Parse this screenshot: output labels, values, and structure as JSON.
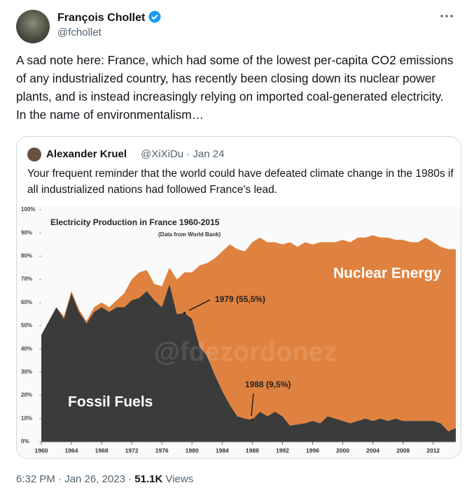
{
  "tweet": {
    "author": "François Chollet",
    "handle": "@fchollet",
    "text": "A sad note here: France, which had some of the lowest per-capita CO2 emissions of any industrialized country, has recently been closing down its nuclear power plants, and is instead increasingly relying on imported coal-generated electricity. In the name of environmentalism…"
  },
  "quoted": {
    "author": "Alexander Kruel",
    "meta": "@XiXiDu · Jan 24",
    "text": "Your frequent reminder that the world could have defeated climate change in the 1980s if all industrialized nations had followed France's lead."
  },
  "footer": {
    "timestamp": "6:32 PM · Jan 26, 2023 ·",
    "views": "51.1K",
    "views_label": "Views"
  },
  "chart_data": {
    "type": "area",
    "stacked": true,
    "title": "Electricity Production in France 1960-2015",
    "subtitle": "(Data from World Bank)",
    "watermark": "@fdezordonez",
    "annotations": [
      {
        "text": "1979 (55,5%)",
        "x": 1979,
        "y": 55.5
      },
      {
        "text": "1988 (9,5%)",
        "x": 1988,
        "y": 9.5
      }
    ],
    "x": [
      1960,
      1961,
      1962,
      1963,
      1964,
      1965,
      1966,
      1967,
      1968,
      1969,
      1970,
      1971,
      1972,
      1973,
      1974,
      1975,
      1976,
      1977,
      1978,
      1979,
      1980,
      1981,
      1982,
      1983,
      1984,
      1985,
      1986,
      1987,
      1988,
      1989,
      1990,
      1991,
      1992,
      1993,
      1994,
      1995,
      1996,
      1997,
      1998,
      1999,
      2000,
      2001,
      2002,
      2003,
      2004,
      2005,
      2006,
      2007,
      2008,
      2009,
      2010,
      2011,
      2012,
      2013,
      2014,
      2015
    ],
    "series": [
      {
        "name": "Fossil Fuels",
        "color": "#3b3b3b",
        "values": [
          46,
          52,
          58,
          53,
          64,
          56,
          51,
          56,
          58,
          56,
          58,
          58,
          61,
          62,
          65,
          61,
          58,
          68,
          55,
          55.5,
          53,
          41,
          37,
          29,
          22,
          16,
          11,
          10,
          9.5,
          13,
          11,
          13,
          11,
          7,
          7.5,
          8,
          9,
          8,
          11,
          10,
          9,
          8,
          9,
          10,
          9,
          10,
          9,
          10,
          9,
          9,
          9,
          9,
          9,
          8,
          4.5,
          6
        ]
      },
      {
        "name": "Nuclear Energy",
        "color": "#e0823f",
        "values": [
          0,
          0,
          0,
          1,
          1,
          1,
          1,
          2,
          2,
          2,
          3,
          6,
          9,
          11,
          9,
          7,
          9,
          7,
          15,
          17.5,
          20,
          35,
          40,
          50,
          60,
          69,
          72,
          72,
          76.5,
          75,
          75,
          73,
          74,
          79,
          76.5,
          78,
          76,
          78,
          75,
          76,
          78,
          78,
          79,
          78,
          80,
          78,
          79,
          77,
          78,
          77,
          77,
          79,
          77,
          76,
          78.5,
          77
        ]
      }
    ],
    "xlim": [
      1960,
      2015
    ],
    "ylim": [
      0,
      100
    ],
    "xticks": [
      1960,
      1964,
      1968,
      1972,
      1976,
      1980,
      1984,
      1988,
      1992,
      1996,
      2000,
      2004,
      2008,
      2012
    ],
    "yticks": [
      {
        "value": 0,
        "label": "0%"
      },
      {
        "value": 10,
        "label": "10%"
      },
      {
        "value": 20,
        "label": "20%"
      },
      {
        "value": 30,
        "label": "30%"
      },
      {
        "value": 40,
        "label": "40%"
      },
      {
        "value": 50,
        "label": "50%"
      },
      {
        "value": 60,
        "label": "60%"
      },
      {
        "value": 70,
        "label": "70%"
      },
      {
        "value": 80,
        "label": "80%"
      },
      {
        "value": 90,
        "label": "90%"
      },
      {
        "value": 100,
        "label": "100%"
      }
    ]
  }
}
